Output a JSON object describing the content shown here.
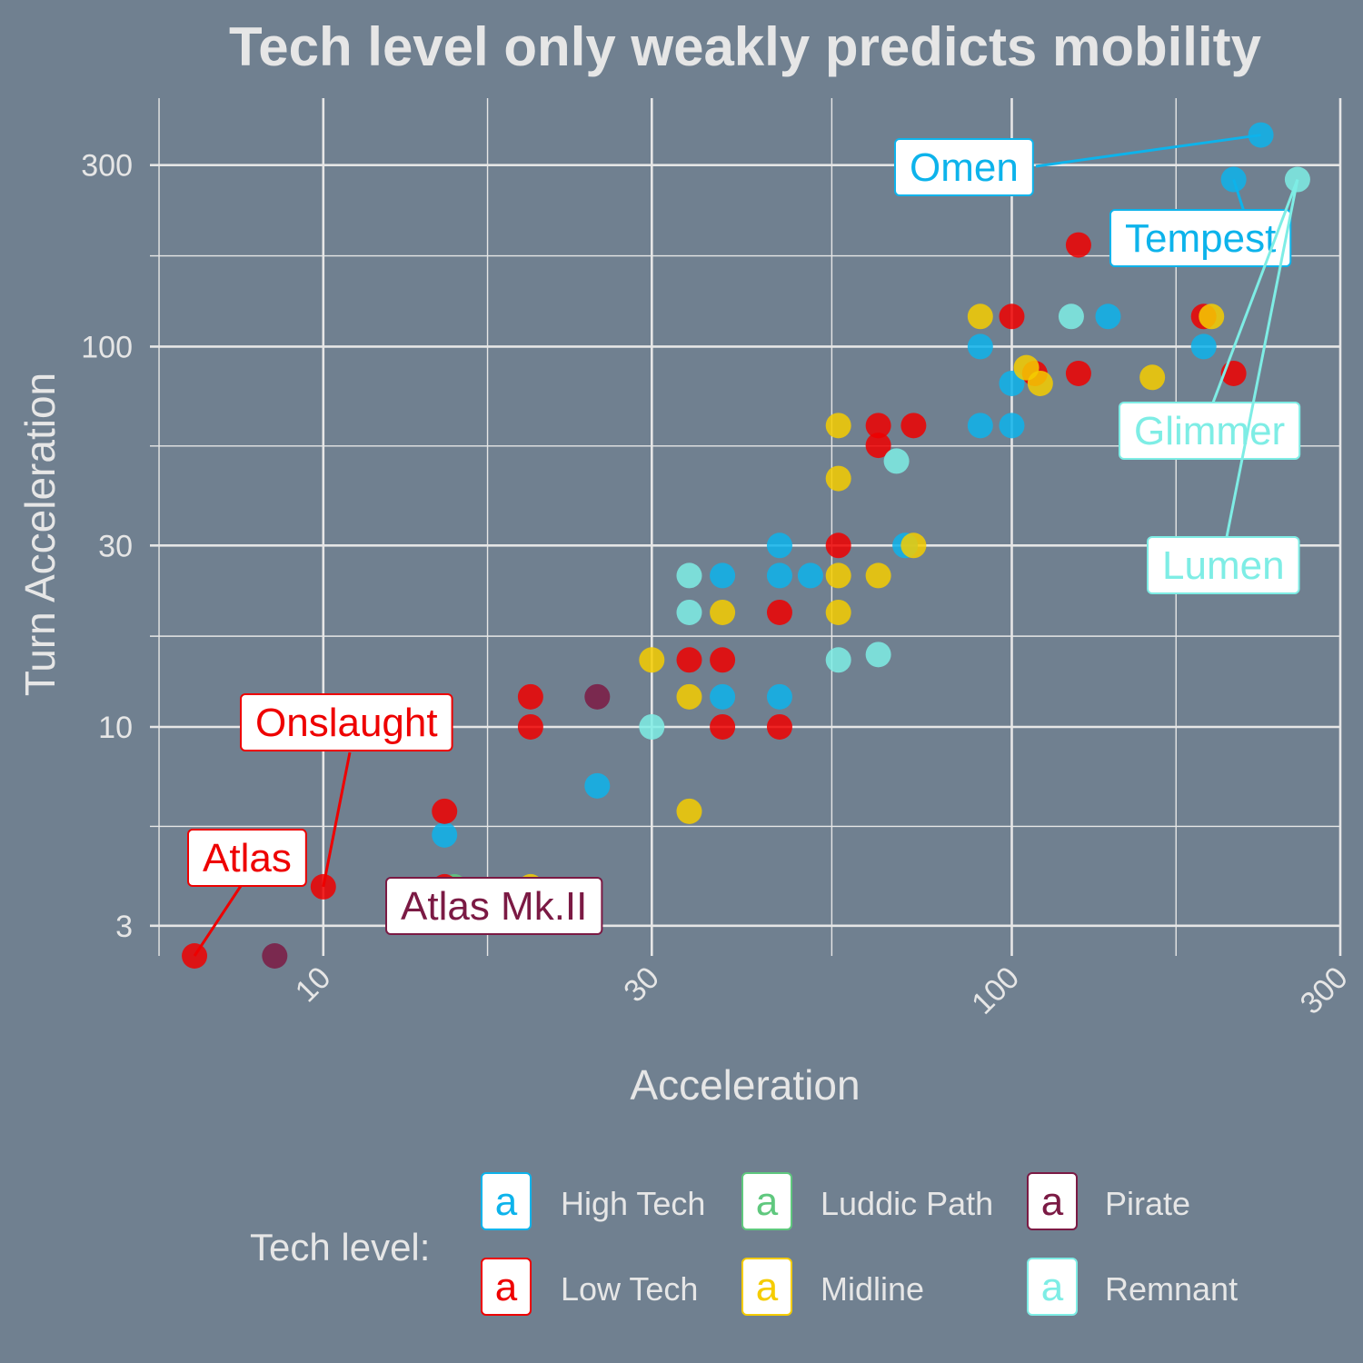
{
  "chart_data": {
    "type": "scatter",
    "title": "Tech level only weakly predicts mobility",
    "xlabel": "Acceleration",
    "ylabel": "Turn Acceleration",
    "x_scale": "log10",
    "y_scale": "log10",
    "xlim": [
      5.6,
      300
    ],
    "ylim": [
      2.5,
      450
    ],
    "x_ticks": [
      10,
      30,
      100,
      300
    ],
    "x_tick_labels": [
      "10",
      "30",
      "100",
      "300"
    ],
    "y_ticks": [
      3,
      10,
      30,
      100,
      300
    ],
    "y_tick_labels": [
      "3",
      "10",
      "30",
      "100",
      "300"
    ],
    "grid": true,
    "legend": {
      "title": "Tech level:",
      "position": "bottom",
      "key_glyph": "a",
      "entries": [
        {
          "name": "High Tech",
          "color": "#0DB3EB"
        },
        {
          "name": "Luddic Path",
          "color": "#5FC87E"
        },
        {
          "name": "Pirate",
          "color": "#7B1A44"
        },
        {
          "name": "Low Tech",
          "color": "#EE0000"
        },
        {
          "name": "Midline",
          "color": "#F5CC00"
        },
        {
          "name": "Remnant",
          "color": "#7EEDE5"
        }
      ]
    },
    "series": [
      {
        "name": "High Tech",
        "color": "#0DB3EB",
        "points": [
          [
            230,
            360
          ],
          [
            210,
            275
          ],
          [
            138,
            120
          ],
          [
            90,
            100
          ],
          [
            100,
            80
          ],
          [
            90,
            62
          ],
          [
            100,
            62
          ],
          [
            190,
            100
          ],
          [
            46,
            30
          ],
          [
            46,
            25
          ],
          [
            51,
            25
          ],
          [
            38,
            25
          ],
          [
            38,
            12
          ],
          [
            46,
            12
          ],
          [
            25,
            7
          ],
          [
            15,
            5.2
          ],
          [
            70,
            30
          ]
        ]
      },
      {
        "name": "Luddic Path",
        "color": "#5FC87E",
        "points": [
          [
            15.5,
            3.8
          ]
        ]
      },
      {
        "name": "Pirate",
        "color": "#7B1A44",
        "points": [
          [
            8.5,
            2.5
          ],
          [
            25,
            12
          ]
        ]
      },
      {
        "name": "Low Tech",
        "color": "#EE0000",
        "points": [
          [
            6.5,
            2.5
          ],
          [
            10,
            3.8
          ],
          [
            15,
            3.8
          ],
          [
            15,
            6
          ],
          [
            20,
            10
          ],
          [
            20,
            12
          ],
          [
            34,
            15
          ],
          [
            38,
            15
          ],
          [
            38,
            10
          ],
          [
            46,
            10
          ],
          [
            46,
            20
          ],
          [
            56,
            30
          ],
          [
            64,
            55
          ],
          [
            64,
            62
          ],
          [
            72,
            62
          ],
          [
            100,
            120
          ],
          [
            108,
            85
          ],
          [
            125,
            85
          ],
          [
            125,
            185
          ],
          [
            190,
            120
          ],
          [
            210,
            85
          ]
        ]
      },
      {
        "name": "Midline",
        "color": "#F5CC00",
        "points": [
          [
            20,
            3.8
          ],
          [
            34,
            6
          ],
          [
            34,
            12
          ],
          [
            38,
            20
          ],
          [
            30,
            15
          ],
          [
            56,
            20
          ],
          [
            56,
            25
          ],
          [
            64,
            25
          ],
          [
            72,
            30
          ],
          [
            56,
            45
          ],
          [
            56,
            62
          ],
          [
            90,
            120
          ],
          [
            105,
            88
          ],
          [
            110,
            80
          ],
          [
            160,
            83
          ],
          [
            195,
            120
          ]
        ]
      },
      {
        "name": "Remnant",
        "color": "#7EEDE5",
        "points": [
          [
            30,
            10
          ],
          [
            34,
            20
          ],
          [
            34,
            25
          ],
          [
            56,
            15
          ],
          [
            64,
            15.5
          ],
          [
            68,
            50
          ],
          [
            122,
            120
          ],
          [
            260,
            275
          ]
        ]
      }
    ],
    "annotations": [
      {
        "text": "Omen",
        "series": "High Tech",
        "point": [
          230,
          360
        ]
      },
      {
        "text": "Tempest",
        "series": "High Tech",
        "point": [
          210,
          275
        ]
      },
      {
        "text": "Glimmer",
        "series": "Remnant",
        "point": [
          260,
          275
        ]
      },
      {
        "text": "Lumen",
        "series": "Remnant",
        "point": [
          260,
          275
        ]
      },
      {
        "text": "Onslaught",
        "series": "Low Tech",
        "point": [
          10,
          3.8
        ]
      },
      {
        "text": "Atlas",
        "series": "Low Tech",
        "point": [
          6.5,
          2.5
        ]
      },
      {
        "text": "Atlas Mk.II",
        "series": "Pirate",
        "point": [
          8.5,
          2.5
        ]
      }
    ]
  }
}
